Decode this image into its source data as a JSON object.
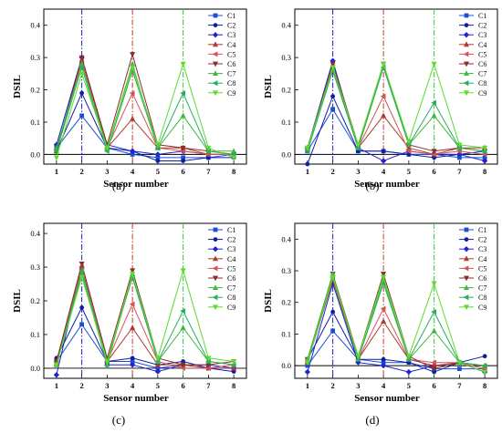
{
  "chart_data": [
    {
      "type": "line",
      "panel_label": "(a)",
      "xlabel": "Sensor number",
      "ylabel": "DSIL",
      "x": [
        1,
        2,
        3,
        4,
        5,
        6,
        7,
        8
      ],
      "xticks": [
        "1",
        "2",
        "3",
        "4",
        "5",
        "6",
        "7",
        "8"
      ],
      "yticks": [
        "0.0",
        "0.1",
        "0.2",
        "0.3",
        "0.4"
      ],
      "xlim": [
        0.5,
        8.5
      ],
      "ylim": [
        -0.03,
        0.45
      ],
      "vlines": [
        {
          "x": 2,
          "color": "#1f1fbf"
        },
        {
          "x": 4,
          "color": "#c0392b"
        },
        {
          "x": 6,
          "color": "#2ecc40"
        }
      ],
      "legend_position": "top-right",
      "series": [
        {
          "name": "C1",
          "color": "#1a4fd6",
          "marker": "square",
          "values": [
            0.02,
            0.12,
            0.02,
            0.0,
            -0.01,
            -0.01,
            -0.01,
            0.0
          ]
        },
        {
          "name": "C2",
          "color": "#0d1fa8",
          "marker": "circle",
          "values": [
            0.01,
            0.19,
            0.02,
            0.01,
            -0.02,
            -0.02,
            -0.01,
            -0.01
          ]
        },
        {
          "name": "C3",
          "color": "#2323d0",
          "marker": "diamond",
          "values": [
            0.03,
            0.3,
            0.03,
            0.01,
            0.0,
            0.01,
            0.0,
            0.0
          ]
        },
        {
          "name": "C4",
          "color": "#b03a2e",
          "marker": "triangle-up",
          "values": [
            0.01,
            0.29,
            0.02,
            0.11,
            0.02,
            0.02,
            0.0,
            0.0
          ]
        },
        {
          "name": "C5",
          "color": "#d35454",
          "marker": "triangle-left",
          "values": [
            0.01,
            0.29,
            0.02,
            0.19,
            0.02,
            0.01,
            0.0,
            0.0
          ]
        },
        {
          "name": "C6",
          "color": "#8e2b2b",
          "marker": "triangle-down",
          "values": [
            0.01,
            0.3,
            0.03,
            0.31,
            0.03,
            0.02,
            0.01,
            0.0
          ]
        },
        {
          "name": "C7",
          "color": "#3fb83f",
          "marker": "triangle-up",
          "values": [
            0.02,
            0.28,
            0.02,
            0.28,
            0.02,
            0.12,
            0.01,
            0.01
          ]
        },
        {
          "name": "C8",
          "color": "#27ae60",
          "marker": "triangle-left",
          "values": [
            0.01,
            0.27,
            0.01,
            0.26,
            0.02,
            0.19,
            0.01,
            0.0
          ]
        },
        {
          "name": "C9",
          "color": "#5ddc2e",
          "marker": "triangle-down",
          "values": [
            -0.01,
            0.25,
            0.02,
            0.27,
            0.03,
            0.28,
            0.02,
            -0.01
          ]
        }
      ]
    },
    {
      "type": "line",
      "panel_label": "(b)",
      "xlabel": "Sensor number",
      "ylabel": "DSIL",
      "x": [
        1,
        2,
        3,
        4,
        5,
        6,
        7,
        8
      ],
      "xticks": [
        "1",
        "2",
        "3",
        "4",
        "5",
        "6",
        "7",
        "8"
      ],
      "yticks": [
        "0.0",
        "0.1",
        "0.2",
        "0.3",
        "0.4"
      ],
      "xlim": [
        0.5,
        8.5
      ],
      "ylim": [
        -0.03,
        0.45
      ],
      "vlines": [
        {
          "x": 2,
          "color": "#1f1fbf"
        },
        {
          "x": 4,
          "color": "#c0392b"
        },
        {
          "x": 6,
          "color": "#2ecc40"
        }
      ],
      "legend_position": "top-right",
      "series": [
        {
          "name": "C1",
          "color": "#1a4fd6",
          "marker": "square",
          "values": [
            0.01,
            0.14,
            0.01,
            0.01,
            0.0,
            0.0,
            -0.01,
            -0.01
          ]
        },
        {
          "name": "C2",
          "color": "#0d1fa8",
          "marker": "circle",
          "values": [
            -0.03,
            0.18,
            0.01,
            0.01,
            0.0,
            -0.01,
            0.0,
            0.01
          ]
        },
        {
          "name": "C3",
          "color": "#2323d0",
          "marker": "diamond",
          "values": [
            0.02,
            0.29,
            0.02,
            -0.02,
            0.01,
            0.0,
            0.0,
            -0.02
          ]
        },
        {
          "name": "C4",
          "color": "#b03a2e",
          "marker": "triangle-up",
          "values": [
            0.02,
            0.27,
            0.02,
            0.12,
            0.02,
            0.0,
            0.02,
            0.02
          ]
        },
        {
          "name": "C5",
          "color": "#d35454",
          "marker": "triangle-left",
          "values": [
            0.01,
            0.27,
            0.02,
            0.18,
            0.01,
            0.0,
            0.01,
            0.0
          ]
        },
        {
          "name": "C6",
          "color": "#8e2b2b",
          "marker": "triangle-down",
          "values": [
            0.02,
            0.28,
            0.03,
            0.28,
            0.03,
            0.01,
            0.02,
            0.01
          ]
        },
        {
          "name": "C7",
          "color": "#3fb83f",
          "marker": "triangle-up",
          "values": [
            0.02,
            0.26,
            0.02,
            0.27,
            0.03,
            0.12,
            0.02,
            0.01
          ]
        },
        {
          "name": "C8",
          "color": "#27ae60",
          "marker": "triangle-left",
          "values": [
            0.01,
            0.26,
            0.02,
            0.27,
            0.03,
            0.16,
            0.02,
            0.01
          ]
        },
        {
          "name": "C9",
          "color": "#5ddc2e",
          "marker": "triangle-down",
          "values": [
            0.02,
            0.27,
            0.03,
            0.28,
            0.04,
            0.28,
            0.03,
            0.02
          ]
        }
      ]
    },
    {
      "type": "line",
      "panel_label": "(c)",
      "xlabel": "Sensor number",
      "ylabel": "DSIL",
      "x": [
        1,
        2,
        3,
        4,
        5,
        6,
        7,
        8
      ],
      "xticks": [
        "1",
        "2",
        "3",
        "4",
        "5",
        "6",
        "7",
        "8"
      ],
      "yticks": [
        "0.0",
        "0.1",
        "0.2",
        "0.3",
        "0.4"
      ],
      "xlim": [
        0.5,
        8.5
      ],
      "ylim": [
        -0.03,
        0.43
      ],
      "vlines": [
        {
          "x": 2,
          "color": "#1f1fbf"
        },
        {
          "x": 4,
          "color": "#c0392b"
        },
        {
          "x": 6,
          "color": "#2ecc40"
        }
      ],
      "legend_position": "top-right",
      "series": [
        {
          "name": "C1",
          "color": "#1a4fd6",
          "marker": "square",
          "values": [
            0.02,
            0.13,
            0.02,
            0.02,
            0.0,
            0.01,
            0.0,
            0.0
          ]
        },
        {
          "name": "C2",
          "color": "#0d1fa8",
          "marker": "circle",
          "values": [
            0.03,
            0.18,
            0.02,
            0.03,
            0.01,
            0.02,
            0.0,
            -0.01
          ]
        },
        {
          "name": "C3",
          "color": "#2323d0",
          "marker": "diamond",
          "values": [
            -0.02,
            0.3,
            0.01,
            0.01,
            -0.01,
            0.01,
            0.01,
            0.0
          ]
        },
        {
          "name": "C4",
          "color": "#b03a2e",
          "marker": "triangle-up",
          "values": [
            0.01,
            0.3,
            0.02,
            0.12,
            0.01,
            0.01,
            0.0,
            0.0
          ]
        },
        {
          "name": "C5",
          "color": "#d35454",
          "marker": "triangle-left",
          "values": [
            0.02,
            0.3,
            0.02,
            0.19,
            0.02,
            0.0,
            0.0,
            0.01
          ]
        },
        {
          "name": "C6",
          "color": "#8e2b2b",
          "marker": "triangle-down",
          "values": [
            0.02,
            0.31,
            0.03,
            0.29,
            0.03,
            0.01,
            0.01,
            0.02
          ]
        },
        {
          "name": "C7",
          "color": "#3fb83f",
          "marker": "triangle-up",
          "values": [
            0.01,
            0.28,
            0.01,
            0.28,
            0.02,
            0.12,
            0.02,
            0.01
          ]
        },
        {
          "name": "C8",
          "color": "#27ae60",
          "marker": "triangle-left",
          "values": [
            0.01,
            0.29,
            0.02,
            0.27,
            0.02,
            0.17,
            0.02,
            0.01
          ]
        },
        {
          "name": "C9",
          "color": "#5ddc2e",
          "marker": "triangle-down",
          "values": [
            0.01,
            0.27,
            0.02,
            0.28,
            0.03,
            0.29,
            0.03,
            0.02
          ]
        }
      ]
    },
    {
      "type": "line",
      "panel_label": "(d)",
      "xlabel": "Sensor number",
      "ylabel": "DSIL",
      "x": [
        1,
        2,
        3,
        4,
        5,
        6,
        7,
        8
      ],
      "xticks": [
        "1",
        "2",
        "3",
        "4",
        "5",
        "6",
        "7",
        "8"
      ],
      "yticks": [
        "0.0",
        "0.1",
        "0.2",
        "0.3",
        "0.4"
      ],
      "xlim": [
        0.5,
        8.5
      ],
      "ylim": [
        -0.04,
        0.45
      ],
      "vlines": [
        {
          "x": 2,
          "color": "#1f1fbf"
        },
        {
          "x": 4,
          "color": "#c0392b"
        },
        {
          "x": 6,
          "color": "#2ecc40"
        }
      ],
      "legend_position": "top-right",
      "series": [
        {
          "name": "C1",
          "color": "#1a4fd6",
          "marker": "square",
          "values": [
            0.0,
            0.11,
            0.02,
            0.01,
            0.01,
            -0.01,
            -0.01,
            -0.01
          ]
        },
        {
          "name": "C2",
          "color": "#0d1fa8",
          "marker": "circle",
          "values": [
            0.02,
            0.17,
            0.02,
            0.02,
            0.01,
            -0.02,
            0.01,
            0.03
          ]
        },
        {
          "name": "C3",
          "color": "#2323d0",
          "marker": "diamond",
          "values": [
            -0.02,
            0.26,
            0.01,
            0.0,
            -0.02,
            0.0,
            0.01,
            -0.02
          ]
        },
        {
          "name": "C4",
          "color": "#b03a2e",
          "marker": "triangle-up",
          "values": [
            0.01,
            0.27,
            0.02,
            0.14,
            0.02,
            0.0,
            0.01,
            0.0
          ]
        },
        {
          "name": "C5",
          "color": "#d35454",
          "marker": "triangle-left",
          "values": [
            0.01,
            0.28,
            0.02,
            0.18,
            0.02,
            0.01,
            0.01,
            -0.01
          ]
        },
        {
          "name": "C6",
          "color": "#8e2b2b",
          "marker": "triangle-down",
          "values": [
            0.02,
            0.29,
            0.03,
            0.29,
            0.03,
            -0.01,
            0.01,
            -0.02
          ]
        },
        {
          "name": "C7",
          "color": "#3fb83f",
          "marker": "triangle-up",
          "values": [
            0.02,
            0.29,
            0.02,
            0.27,
            0.02,
            0.11,
            0.01,
            0.0
          ]
        },
        {
          "name": "C8",
          "color": "#27ae60",
          "marker": "triangle-left",
          "values": [
            0.01,
            0.28,
            0.02,
            0.26,
            0.02,
            0.17,
            0.01,
            0.0
          ]
        },
        {
          "name": "C9",
          "color": "#5ddc2e",
          "marker": "triangle-down",
          "values": [
            0.01,
            0.28,
            0.03,
            0.28,
            0.03,
            0.26,
            0.01,
            -0.02
          ]
        }
      ]
    }
  ]
}
